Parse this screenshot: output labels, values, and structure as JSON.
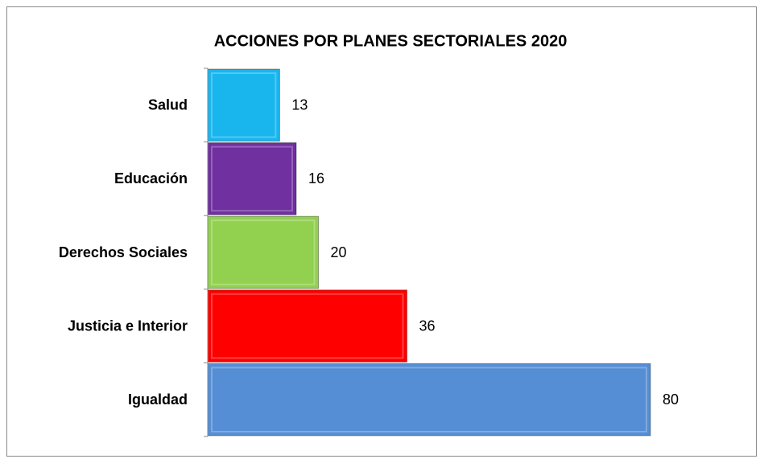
{
  "chart_data": {
    "type": "barh",
    "title": "ACCIONES POR PLANES SECTORIALES 2020",
    "categories": [
      "Salud",
      "Educación",
      "Derechos Sociales",
      "Justicia e Interior",
      "Igualdad"
    ],
    "values": [
      13,
      16,
      20,
      36,
      80
    ],
    "colors": [
      "#19b6ee",
      "#7030a0",
      "#92d050",
      "#ff0000",
      "#558ed5"
    ]
  }
}
